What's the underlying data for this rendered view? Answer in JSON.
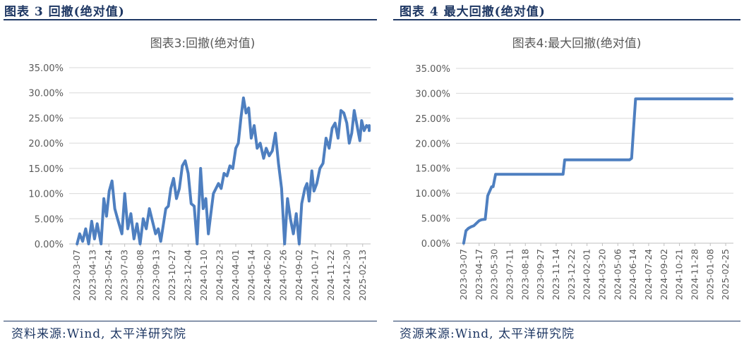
{
  "figures": [
    {
      "id": "left",
      "header": "图表 3 回撤(绝对值)",
      "source": "资料来源:Wind, 太平洋研究院"
    },
    {
      "id": "right",
      "header": "图表 4 最大回撤(绝对值)",
      "source": "资源来源:Wind, 太平洋研究院"
    }
  ],
  "chart_data": [
    {
      "type": "line",
      "title": "图表3:回撤(绝对值)",
      "xlabel": "",
      "ylabel": "",
      "ylim": [
        0,
        0.35
      ],
      "y_ticks": [
        "0.00%",
        "5.00%",
        "10.00%",
        "15.00%",
        "20.00%",
        "25.00%",
        "30.00%",
        "35.00%"
      ],
      "x_ticks": [
        "2023-03-07",
        "2023-04-13",
        "2023-05-24",
        "2023-07-03",
        "2023-08-08",
        "2023-09-13",
        "2023-10-27",
        "2023-12-04",
        "2024-01-10",
        "2024-02-23",
        "2024-04-01",
        "2024-05-14",
        "2024-06-20",
        "2024-07-26",
        "2024-09-02",
        "2024-10-17",
        "2024-11-22",
        "2024-12-30",
        "2025-02-13"
      ],
      "grid": true,
      "series": [
        {
          "color": "#4e7fc0",
          "x": [
            "2023-03-07",
            "2023-03-13",
            "2023-03-20",
            "2023-03-27",
            "2023-04-03",
            "2023-04-10",
            "2023-04-17",
            "2023-04-24",
            "2023-05-04",
            "2023-05-11",
            "2023-05-18",
            "2023-05-25",
            "2023-06-01",
            "2023-06-08",
            "2023-06-15",
            "2023-06-26",
            "2023-07-03",
            "2023-07-10",
            "2023-07-17",
            "2023-07-24",
            "2023-07-31",
            "2023-08-07",
            "2023-08-14",
            "2023-08-21",
            "2023-08-28",
            "2023-09-04",
            "2023-09-11",
            "2023-09-18",
            "2023-09-25",
            "2023-10-09",
            "2023-10-16",
            "2023-10-23",
            "2023-10-30",
            "2023-11-06",
            "2023-11-13",
            "2023-11-20",
            "2023-11-27",
            "2023-12-04",
            "2023-12-11",
            "2023-12-18",
            "2023-12-25",
            "2024-01-02",
            "2024-01-08",
            "2024-01-15",
            "2024-01-22",
            "2024-01-29",
            "2024-02-05",
            "2024-02-19",
            "2024-02-26",
            "2024-03-04",
            "2024-03-11",
            "2024-03-18",
            "2024-03-25",
            "2024-04-01",
            "2024-04-08",
            "2024-04-15",
            "2024-04-22",
            "2024-04-29",
            "2024-05-06",
            "2024-05-13",
            "2024-05-20",
            "2024-05-27",
            "2024-06-03",
            "2024-06-11",
            "2024-06-17",
            "2024-06-24",
            "2024-07-01",
            "2024-07-08",
            "2024-07-15",
            "2024-07-22",
            "2024-07-29",
            "2024-08-05",
            "2024-08-12",
            "2024-08-19",
            "2024-08-26",
            "2024-09-02",
            "2024-09-09",
            "2024-09-18",
            "2024-09-24",
            "2024-09-30",
            "2024-10-08",
            "2024-10-14",
            "2024-10-21",
            "2024-10-28",
            "2024-11-04",
            "2024-11-11",
            "2024-11-18",
            "2024-11-25",
            "2024-12-02",
            "2024-12-09",
            "2024-12-16",
            "2024-12-23",
            "2024-12-30",
            "2025-01-06",
            "2025-01-13",
            "2025-01-20",
            "2025-02-05",
            "2025-02-10",
            "2025-02-17",
            "2025-02-24",
            "2025-03-03",
            "2025-03-10",
            "2025-03-17"
          ],
          "values": [
            0.0,
            0.02,
            0.005,
            0.03,
            0.0,
            0.045,
            0.01,
            0.04,
            0.0,
            0.09,
            0.055,
            0.105,
            0.125,
            0.07,
            0.05,
            0.02,
            0.1,
            0.03,
            0.06,
            0.01,
            0.04,
            0.0,
            0.05,
            0.03,
            0.07,
            0.045,
            0.02,
            0.03,
            0.005,
            0.07,
            0.075,
            0.11,
            0.13,
            0.09,
            0.11,
            0.155,
            0.165,
            0.14,
            0.08,
            0.075,
            0.0,
            0.15,
            0.07,
            0.09,
            0.02,
            0.06,
            0.1,
            0.12,
            0.11,
            0.14,
            0.135,
            0.155,
            0.15,
            0.19,
            0.2,
            0.25,
            0.29,
            0.26,
            0.27,
            0.21,
            0.235,
            0.19,
            0.2,
            0.17,
            0.19,
            0.175,
            0.185,
            0.22,
            0.16,
            0.11,
            0.0,
            0.09,
            0.05,
            0.02,
            0.06,
            0.0,
            0.08,
            0.11,
            0.12,
            0.085,
            0.145,
            0.105,
            0.12,
            0.15,
            0.16,
            0.21,
            0.19,
            0.23,
            0.24,
            0.21,
            0.265,
            0.26,
            0.24,
            0.2,
            0.22,
            0.265,
            0.205,
            0.245,
            0.225,
            0.235,
            0.23,
            0.235,
            0.225
          ]
        }
      ]
    },
    {
      "type": "line",
      "title": "图表4:最大回撤(绝对值)",
      "xlabel": "",
      "ylabel": "",
      "ylim": [
        0,
        0.35
      ],
      "y_ticks": [
        "0.00%",
        "5.00%",
        "10.00%",
        "15.00%",
        "20.00%",
        "25.00%",
        "30.00%",
        "35.00%"
      ],
      "x_ticks": [
        "2023-03-07",
        "2023-04-17",
        "2023-05-30",
        "2023-07-11",
        "2023-08-18",
        "2023-09-27",
        "2023-11-14",
        "2023-12-22",
        "2024-02-01",
        "2024-03-20",
        "2024-05-06",
        "2024-06-14",
        "2024-07-24",
        "2024-09-02",
        "2024-10-21",
        "2024-11-28",
        "2025-01-08",
        "2025-02-25"
      ],
      "grid": true,
      "series": [
        {
          "color": "#4e7fc0",
          "x": [
            "2023-03-07",
            "2023-03-13",
            "2023-03-20",
            "2023-03-27",
            "2023-04-03",
            "2023-04-17",
            "2023-04-24",
            "2023-05-04",
            "2023-05-11",
            "2023-05-22",
            "2023-05-26",
            "2023-06-02",
            "2023-07-11",
            "2023-08-18",
            "2023-09-27",
            "2023-11-14",
            "2023-12-01",
            "2023-12-05",
            "2024-01-10",
            "2024-02-01",
            "2024-03-20",
            "2024-05-06",
            "2024-06-05",
            "2024-06-10",
            "2024-06-14",
            "2024-06-20",
            "2024-07-24",
            "2024-09-02",
            "2024-10-21",
            "2024-11-28",
            "2025-01-08",
            "2025-02-25",
            "2025-03-17"
          ],
          "values": [
            0.0,
            0.025,
            0.03,
            0.033,
            0.035,
            0.045,
            0.047,
            0.048,
            0.095,
            0.113,
            0.113,
            0.138,
            0.138,
            0.138,
            0.138,
            0.138,
            0.138,
            0.167,
            0.167,
            0.167,
            0.167,
            0.167,
            0.167,
            0.17,
            0.22,
            0.289,
            0.289,
            0.289,
            0.289,
            0.289,
            0.289,
            0.289,
            0.289
          ]
        }
      ]
    }
  ]
}
